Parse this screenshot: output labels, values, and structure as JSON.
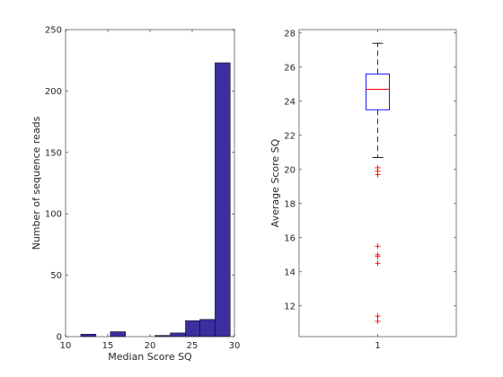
{
  "chart_data": [
    {
      "type": "bar",
      "subtype": "histogram",
      "xlabel": "Median Score SQ",
      "ylabel": "Number of sequence reads",
      "xlim": [
        10,
        30
      ],
      "ylim": [
        0,
        250
      ],
      "xticks": [
        10,
        15,
        20,
        25,
        30
      ],
      "yticks": [
        0,
        50,
        100,
        150,
        200,
        250
      ],
      "bar_color": "#3b2ea0",
      "bins": [
        {
          "x0": 11.8,
          "x1": 13.6,
          "value": 2
        },
        {
          "x0": 13.6,
          "x1": 15.3,
          "value": 0
        },
        {
          "x0": 15.3,
          "x1": 17.1,
          "value": 4
        },
        {
          "x0": 17.1,
          "x1": 18.9,
          "value": 0
        },
        {
          "x0": 18.9,
          "x1": 20.6,
          "value": 0
        },
        {
          "x0": 20.6,
          "x1": 22.4,
          "value": 1
        },
        {
          "x0": 22.4,
          "x1": 24.2,
          "value": 3
        },
        {
          "x0": 24.2,
          "x1": 25.9,
          "value": 13
        },
        {
          "x0": 25.9,
          "x1": 27.7,
          "value": 14
        },
        {
          "x0": 27.7,
          "x1": 29.5,
          "value": 223
        }
      ]
    },
    {
      "type": "boxplot",
      "xlabel": "",
      "ylabel": "Average Score SQ",
      "ylim": [
        10.2,
        28.2
      ],
      "yticks": [
        12,
        14,
        16,
        18,
        20,
        22,
        24,
        26,
        28
      ],
      "categories": [
        "1"
      ],
      "box": {
        "whisker_low": 20.7,
        "q1": 23.5,
        "median": 24.7,
        "q3": 25.6,
        "whisker_high": 27.4
      },
      "outliers": [
        20.1,
        19.9,
        19.7,
        15.5,
        15.0,
        14.9,
        14.5,
        11.4,
        11.1
      ],
      "box_color": "#0000ff",
      "median_color": "#ff0000",
      "whisker_color": "#000000",
      "outlier_color": "#ff0000"
    }
  ]
}
